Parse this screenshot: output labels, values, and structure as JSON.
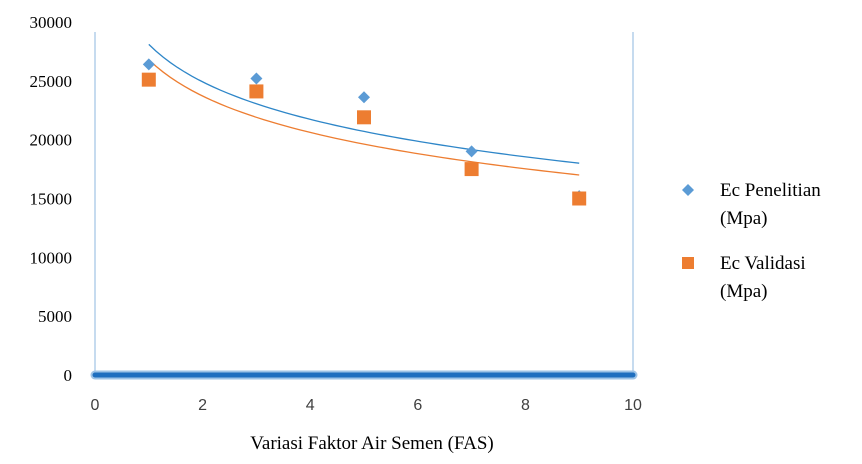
{
  "chart_data": {
    "type": "scatter",
    "title": "",
    "xlabel": "Variasi Faktor Air Semen (FAS)",
    "ylabel": "",
    "xlim": [
      0,
      10
    ],
    "ylim": [
      0,
      30000
    ],
    "x_ticks": [
      "0",
      "2",
      "4",
      "6",
      "8",
      "10"
    ],
    "y_ticks": [
      "0",
      "5000",
      "10000",
      "15000",
      "20000",
      "25000",
      "30000"
    ],
    "grid": false,
    "legend_position": "right",
    "series": [
      {
        "name_lines": [
          "Ec Penelitian",
          "(Mpa)"
        ],
        "marker": "diamond",
        "color": "#5b9bd5",
        "x": [
          1,
          3,
          5,
          7,
          9
        ],
        "y": [
          26400,
          25200,
          23600,
          19000,
          15200
        ],
        "trendline": {
          "type": "logarithmic",
          "x_start": 1,
          "x_end": 9,
          "y_start": 28100,
          "y_end": 18000,
          "color": "#2e86c8"
        }
      },
      {
        "name_lines": [
          "Ec Validasi",
          "(Mpa)"
        ],
        "marker": "square",
        "color": "#ed7d31",
        "x": [
          1,
          3,
          5,
          7,
          9
        ],
        "y": [
          25100,
          24100,
          21900,
          17500,
          15000
        ],
        "trendline": {
          "type": "logarithmic",
          "x_start": 1,
          "x_end": 9,
          "y_start": 26800,
          "y_end": 17000,
          "color": "#ed7d31"
        }
      }
    ]
  }
}
